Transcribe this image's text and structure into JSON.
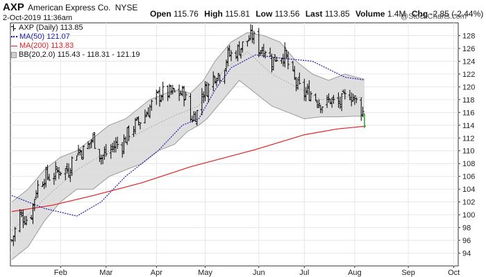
{
  "header": {
    "symbol": "AXP",
    "company": "American Express Co.",
    "exchange": "NYSE",
    "datetime": "2-Oct-2019 11:36am",
    "open_label": "Open",
    "open_value": "115.76",
    "high_label": "High",
    "high_value": "115.81",
    "low_label": "Low",
    "low_value": "113.56",
    "last_label": "Last",
    "last_value": "113.85",
    "volume_label": "Volume",
    "volume_value": "1.4M",
    "chg_label": "Chg",
    "chg_value": "-2.85 (-2.44%)",
    "chg_icon": "down-triangle-icon",
    "watermark": "@StockCharts.com"
  },
  "legend": [
    {
      "label": "AXP (Daily) 113.85",
      "color": "#000000",
      "icon": "ohlc-bar-icon"
    },
    {
      "label": "MA(50) 121.07",
      "color": "#1a1aa6",
      "icon": "dotted-line-icon"
    },
    {
      "label": "MA(200) 113.83",
      "color": "#e02020",
      "icon": "solid-line-icon"
    },
    {
      "label": "BB(20,2.0) 115.43 - 118.31 - 121.19",
      "color": "#aaaaaa",
      "icon": "band-icon"
    }
  ],
  "colors": {
    "bands": "#d8d8d8",
    "bands_edge": "#9a9a9a",
    "ma50": "#1a1aa6",
    "ma200": "#e02020",
    "bars": "#000000",
    "last_bar": "#2e9e2e",
    "grid": "#e6e6e6"
  },
  "chart_data": {
    "type": "line",
    "title": "AXP American Express Co. NYSE",
    "xlabel": "",
    "ylabel": "",
    "ylim": [
      92,
      130
    ],
    "yticks": [
      94,
      96,
      98,
      100,
      102,
      104,
      106,
      108,
      110,
      112,
      114,
      116,
      118,
      120,
      122,
      124,
      126,
      128
    ],
    "xticks": [
      "Feb",
      "Mar",
      "Apr",
      "May",
      "Jun",
      "Jul",
      "Aug",
      "Sep",
      "Oct"
    ],
    "grid": true,
    "y_axis_side": "right",
    "month_starts": [
      "2019-02-01",
      "2019-03-01",
      "2019-04-01",
      "2019-05-01",
      "2019-06-03",
      "2019-07-01",
      "2019-08-01",
      "2019-09-03",
      "2019-10-01"
    ],
    "date_range": [
      "2019-01-02",
      "2019-10-02"
    ],
    "series": [
      {
        "name": "AXP (Daily)",
        "type": "ohlc",
        "close_path": [
          [
            0,
            96
          ],
          [
            5,
            100
          ],
          [
            11,
            99
          ],
          [
            15,
            104
          ],
          [
            20,
            106
          ],
          [
            25,
            106
          ],
          [
            29,
            107
          ],
          [
            35,
            107
          ],
          [
            39,
            110
          ],
          [
            42,
            110
          ],
          [
            45,
            110
          ],
          [
            50,
            112
          ],
          [
            55,
            109
          ],
          [
            60,
            110
          ],
          [
            64,
            111
          ],
          [
            68,
            111
          ],
          [
            72,
            113
          ],
          [
            76,
            114
          ],
          [
            80,
            115
          ],
          [
            83,
            116
          ],
          [
            88,
            118
          ],
          [
            92,
            119
          ],
          [
            96,
            119
          ],
          [
            102,
            119
          ],
          [
            106,
            119
          ],
          [
            110,
            115
          ],
          [
            114,
            116
          ],
          [
            117,
            119
          ],
          [
            121,
            120
          ],
          [
            125,
            122
          ],
          [
            129,
            122
          ],
          [
            133,
            125
          ],
          [
            136,
            125
          ],
          [
            140,
            126
          ],
          [
            144,
            127
          ],
          [
            148,
            128
          ],
          [
            152,
            126
          ],
          [
            156,
            126
          ],
          [
            160,
            124
          ],
          [
            164,
            125
          ],
          [
            168,
            125
          ],
          [
            172,
            122
          ],
          [
            176,
            120
          ],
          [
            180,
            119
          ],
          [
            184,
            119
          ],
          [
            188,
            118
          ],
          [
            192,
            117
          ],
          [
            196,
            118
          ],
          [
            200,
            117
          ],
          [
            204,
            118
          ],
          [
            208,
            119
          ],
          [
            211,
            118
          ],
          [
            214,
            117
          ],
          [
            216,
            116
          ],
          [
            217,
            114
          ]
        ],
        "last": {
          "open": 115.76,
          "high": 115.81,
          "low": 113.56,
          "close": 113.85
        }
      },
      {
        "name": "MA(50)",
        "style": "dotted",
        "path": [
          [
            0,
            103
          ],
          [
            20,
            101
          ],
          [
            40,
            99.8
          ],
          [
            55,
            102
          ],
          [
            70,
            106
          ],
          [
            90,
            110
          ],
          [
            105,
            114
          ],
          [
            115,
            115
          ],
          [
            125,
            119.5
          ],
          [
            135,
            123
          ],
          [
            150,
            125
          ],
          [
            165,
            124.5
          ],
          [
            185,
            124
          ],
          [
            205,
            121.5
          ],
          [
            217,
            121.07
          ]
        ]
      },
      {
        "name": "MA(200)",
        "style": "solid",
        "path": [
          [
            0,
            100.5
          ],
          [
            25,
            101.5
          ],
          [
            50,
            103
          ],
          [
            80,
            105
          ],
          [
            110,
            107.5
          ],
          [
            150,
            110.2
          ],
          [
            180,
            112.5
          ],
          [
            200,
            113.4
          ],
          [
            217,
            113.83
          ]
        ]
      },
      {
        "name": "BB(20,2.0) upper",
        "path": [
          [
            0,
            102
          ],
          [
            10,
            104
          ],
          [
            20,
            107
          ],
          [
            30,
            109
          ],
          [
            40,
            110
          ],
          [
            50,
            112
          ],
          [
            60,
            114
          ],
          [
            70,
            115
          ],
          [
            85,
            118
          ],
          [
            100,
            119.5
          ],
          [
            110,
            119
          ],
          [
            118,
            121
          ],
          [
            125,
            124
          ],
          [
            135,
            127
          ],
          [
            145,
            128.5
          ],
          [
            155,
            128
          ],
          [
            165,
            127
          ],
          [
            175,
            124
          ],
          [
            185,
            122
          ],
          [
            195,
            121
          ],
          [
            205,
            122
          ],
          [
            212,
            121.5
          ],
          [
            217,
            121.19
          ]
        ]
      },
      {
        "name": "BB(20,2.0) lower",
        "path": [
          [
            0,
            93
          ],
          [
            10,
            95
          ],
          [
            20,
            99
          ],
          [
            30,
            102
          ],
          [
            40,
            104
          ],
          [
            50,
            104
          ],
          [
            60,
            106
          ],
          [
            70,
            107
          ],
          [
            80,
            108
          ],
          [
            90,
            110
          ],
          [
            100,
            111
          ],
          [
            108,
            113
          ],
          [
            115,
            114
          ],
          [
            120,
            115
          ],
          [
            130,
            118
          ],
          [
            140,
            121
          ],
          [
            150,
            119
          ],
          [
            160,
            117
          ],
          [
            170,
            116
          ],
          [
            180,
            115
          ],
          [
            190,
            115.3
          ],
          [
            200,
            115.3
          ],
          [
            210,
            115.4
          ],
          [
            217,
            115.43
          ]
        ]
      },
      {
        "name": "BB(20,2.0) middle",
        "path": [
          [
            0,
            97.5
          ],
          [
            20,
            102.5
          ],
          [
            40,
            107
          ],
          [
            60,
            110
          ],
          [
            80,
            113
          ],
          [
            100,
            115.5
          ],
          [
            115,
            117
          ],
          [
            130,
            122.5
          ],
          [
            145,
            125.5
          ],
          [
            160,
            122
          ],
          [
            175,
            120
          ],
          [
            190,
            118
          ],
          [
            205,
            118.5
          ],
          [
            217,
            118.31
          ]
        ]
      }
    ]
  }
}
